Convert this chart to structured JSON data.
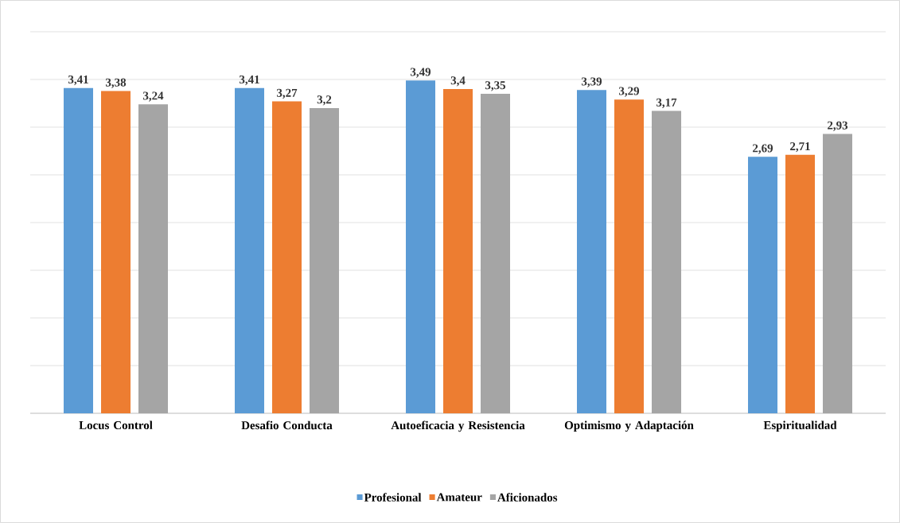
{
  "chart_data": {
    "type": "bar",
    "categories": [
      "Locus Control",
      "Desafio Conducta",
      "Autoeficacia y Resistencia",
      "Optimismo y Adaptación",
      "Espiritualidad"
    ],
    "series": [
      {
        "name": "Profesional",
        "color": "#5b9bd5",
        "values": [
          3.41,
          3.41,
          3.49,
          3.39,
          2.69
        ],
        "value_labels": [
          "3,41",
          "3,41",
          "3,49",
          "3,39",
          "2,69"
        ]
      },
      {
        "name": "Amateur",
        "color": "#ed7d31",
        "values": [
          3.38,
          3.27,
          3.4,
          3.29,
          2.71
        ],
        "value_labels": [
          "3,38",
          "3,27",
          "3,4",
          "3,29",
          "2,71"
        ]
      },
      {
        "name": "Aficionados",
        "color": "#a5a5a5",
        "values": [
          3.24,
          3.2,
          3.35,
          3.17,
          2.93
        ],
        "value_labels": [
          "3,24",
          "3,2",
          "3,35",
          "3,17",
          "2,93"
        ]
      }
    ],
    "ylim": [
      0,
      4
    ],
    "yticks": [
      {
        "value": 0,
        "label": null
      },
      {
        "value": 0.5,
        "label": null
      },
      {
        "value": 1,
        "label": null
      },
      {
        "value": 1.5,
        "label": null
      },
      {
        "value": 2,
        "label": null
      },
      {
        "value": 2.5,
        "label": null
      },
      {
        "value": 3,
        "label": null
      },
      {
        "value": 3.5,
        "label": null
      },
      {
        "value": 4,
        "label": null
      }
    ],
    "tick_labels": "x",
    "grid": "y",
    "legend": "bottom"
  }
}
